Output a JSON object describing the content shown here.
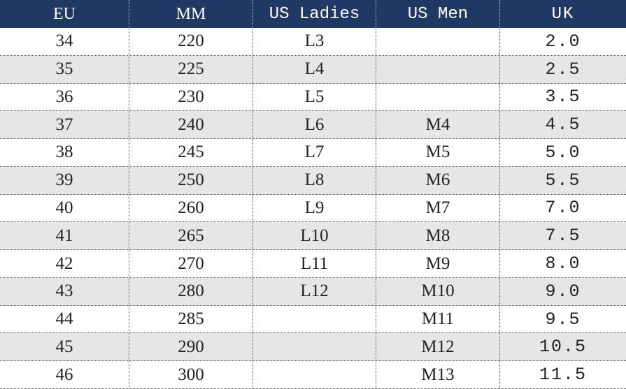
{
  "table": {
    "header": [
      "EU",
      "MM",
      "US Ladies",
      "US Men",
      "UK"
    ],
    "rows": [
      [
        "34",
        "220",
        "L3",
        null,
        "2.0"
      ],
      [
        "35",
        "225",
        "L4",
        null,
        "2.5"
      ],
      [
        "36",
        "230",
        "L5",
        null,
        "3.5"
      ],
      [
        "37",
        "240",
        "L6",
        "M4",
        "4.5"
      ],
      [
        "38",
        "245",
        "L7",
        "M5",
        "5.0"
      ],
      [
        "39",
        "250",
        "L8",
        "M6",
        "5.5"
      ],
      [
        "40",
        "260",
        "L9",
        "M7",
        "7.0"
      ],
      [
        "41",
        "265",
        "L10",
        "M8",
        "7.5"
      ],
      [
        "42",
        "270",
        "L11",
        "M9",
        "8.0"
      ],
      [
        "43",
        "280",
        "L12",
        "M10",
        "9.0"
      ],
      [
        "44",
        "285",
        null,
        "M11",
        "9.5"
      ],
      [
        "45",
        "290",
        null,
        "M12",
        "10.5"
      ],
      [
        "46",
        "300",
        null,
        "M13",
        "11.5"
      ]
    ]
  }
}
